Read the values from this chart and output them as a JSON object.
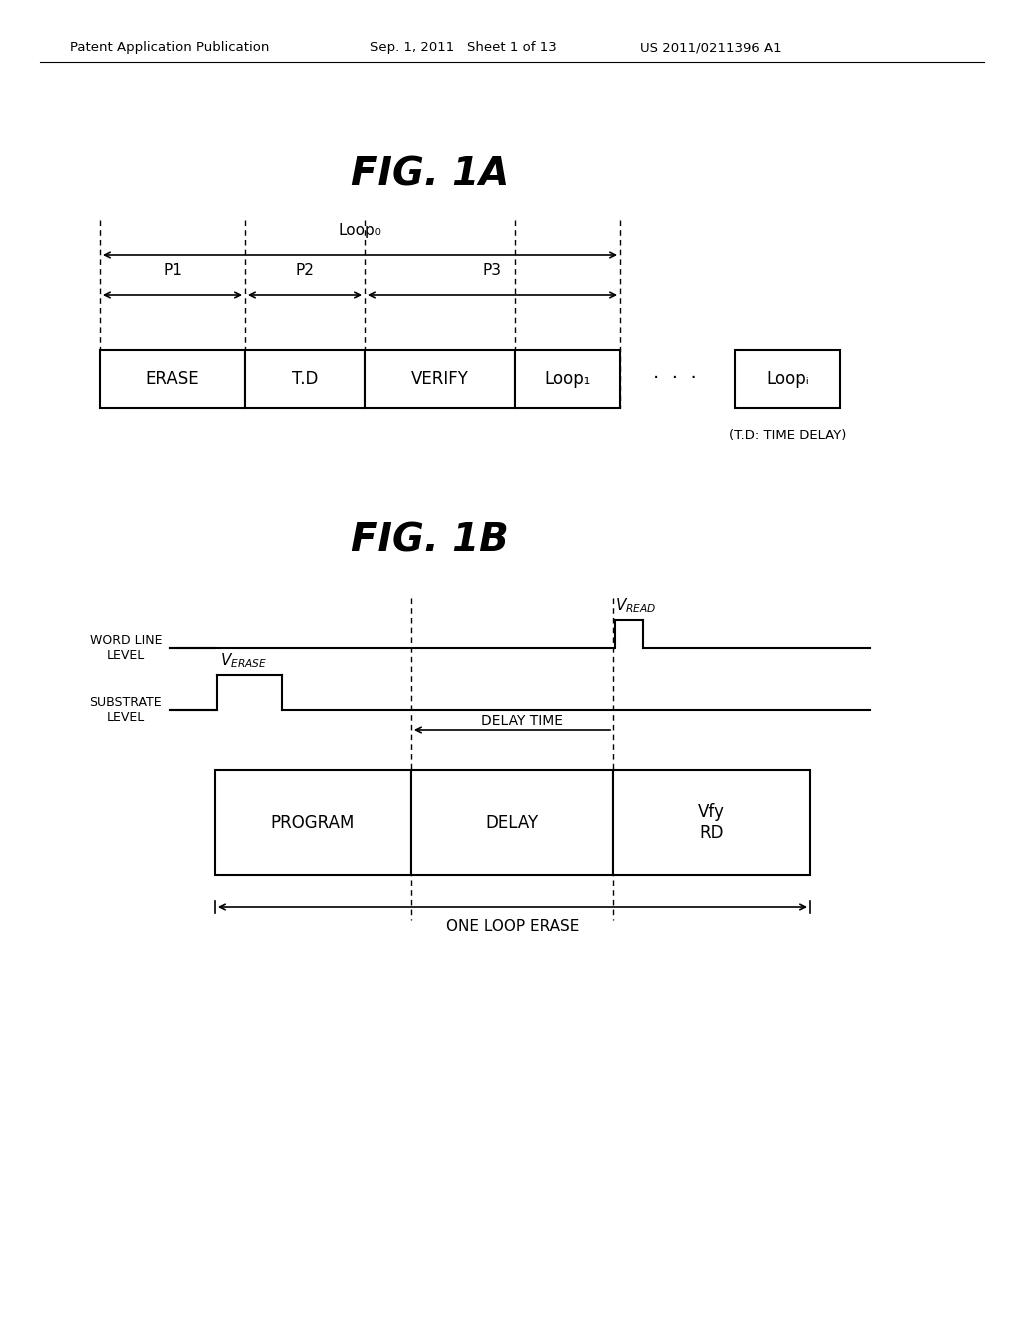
{
  "bg_color": "#ffffff",
  "text_color": "#000000",
  "header_left": "Patent Application Publication",
  "header_mid": "Sep. 1, 2011   Sheet 1 of 13",
  "header_right": "US 2011/0211396 A1",
  "fig1a_title": "FIG. 1A",
  "fig1b_title": "FIG. 1B",
  "td_note": "(T.D: TIME DELAY)"
}
